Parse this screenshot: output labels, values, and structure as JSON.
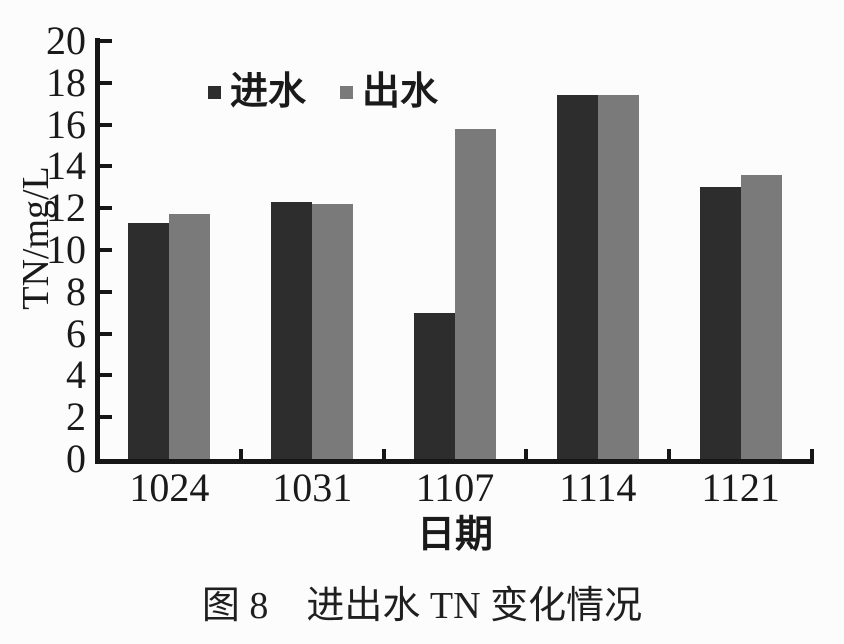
{
  "chart_data": {
    "type": "bar",
    "title": "",
    "xlabel": "日期",
    "ylabel": "TN/mg/L",
    "categories": [
      "1024",
      "1031",
      "1107",
      "1114",
      "1121"
    ],
    "series": [
      {
        "name": "进水",
        "color": "#2d2d2d",
        "values": [
          11.3,
          12.3,
          7.0,
          17.4,
          13.0
        ]
      },
      {
        "name": "出水",
        "color": "#7a7a7a",
        "values": [
          11.7,
          12.2,
          15.8,
          17.4,
          13.6
        ]
      }
    ],
    "ylim": [
      0,
      20
    ],
    "ytick_step": 2,
    "yticks": [
      0,
      2,
      4,
      6,
      8,
      10,
      12,
      14,
      16,
      18,
      20
    ],
    "grid": false,
    "legend_position": "inside-top-left",
    "bar_gap_within_group": 0
  },
  "caption": {
    "figure_label": "图 8",
    "title": "进出水 TN 变化情况"
  },
  "colors": {
    "axis": "#161616",
    "text": "#1a1a1a",
    "background": "#fcfcfc",
    "series_in": "#2d2d2d",
    "series_out": "#7a7a7a"
  }
}
